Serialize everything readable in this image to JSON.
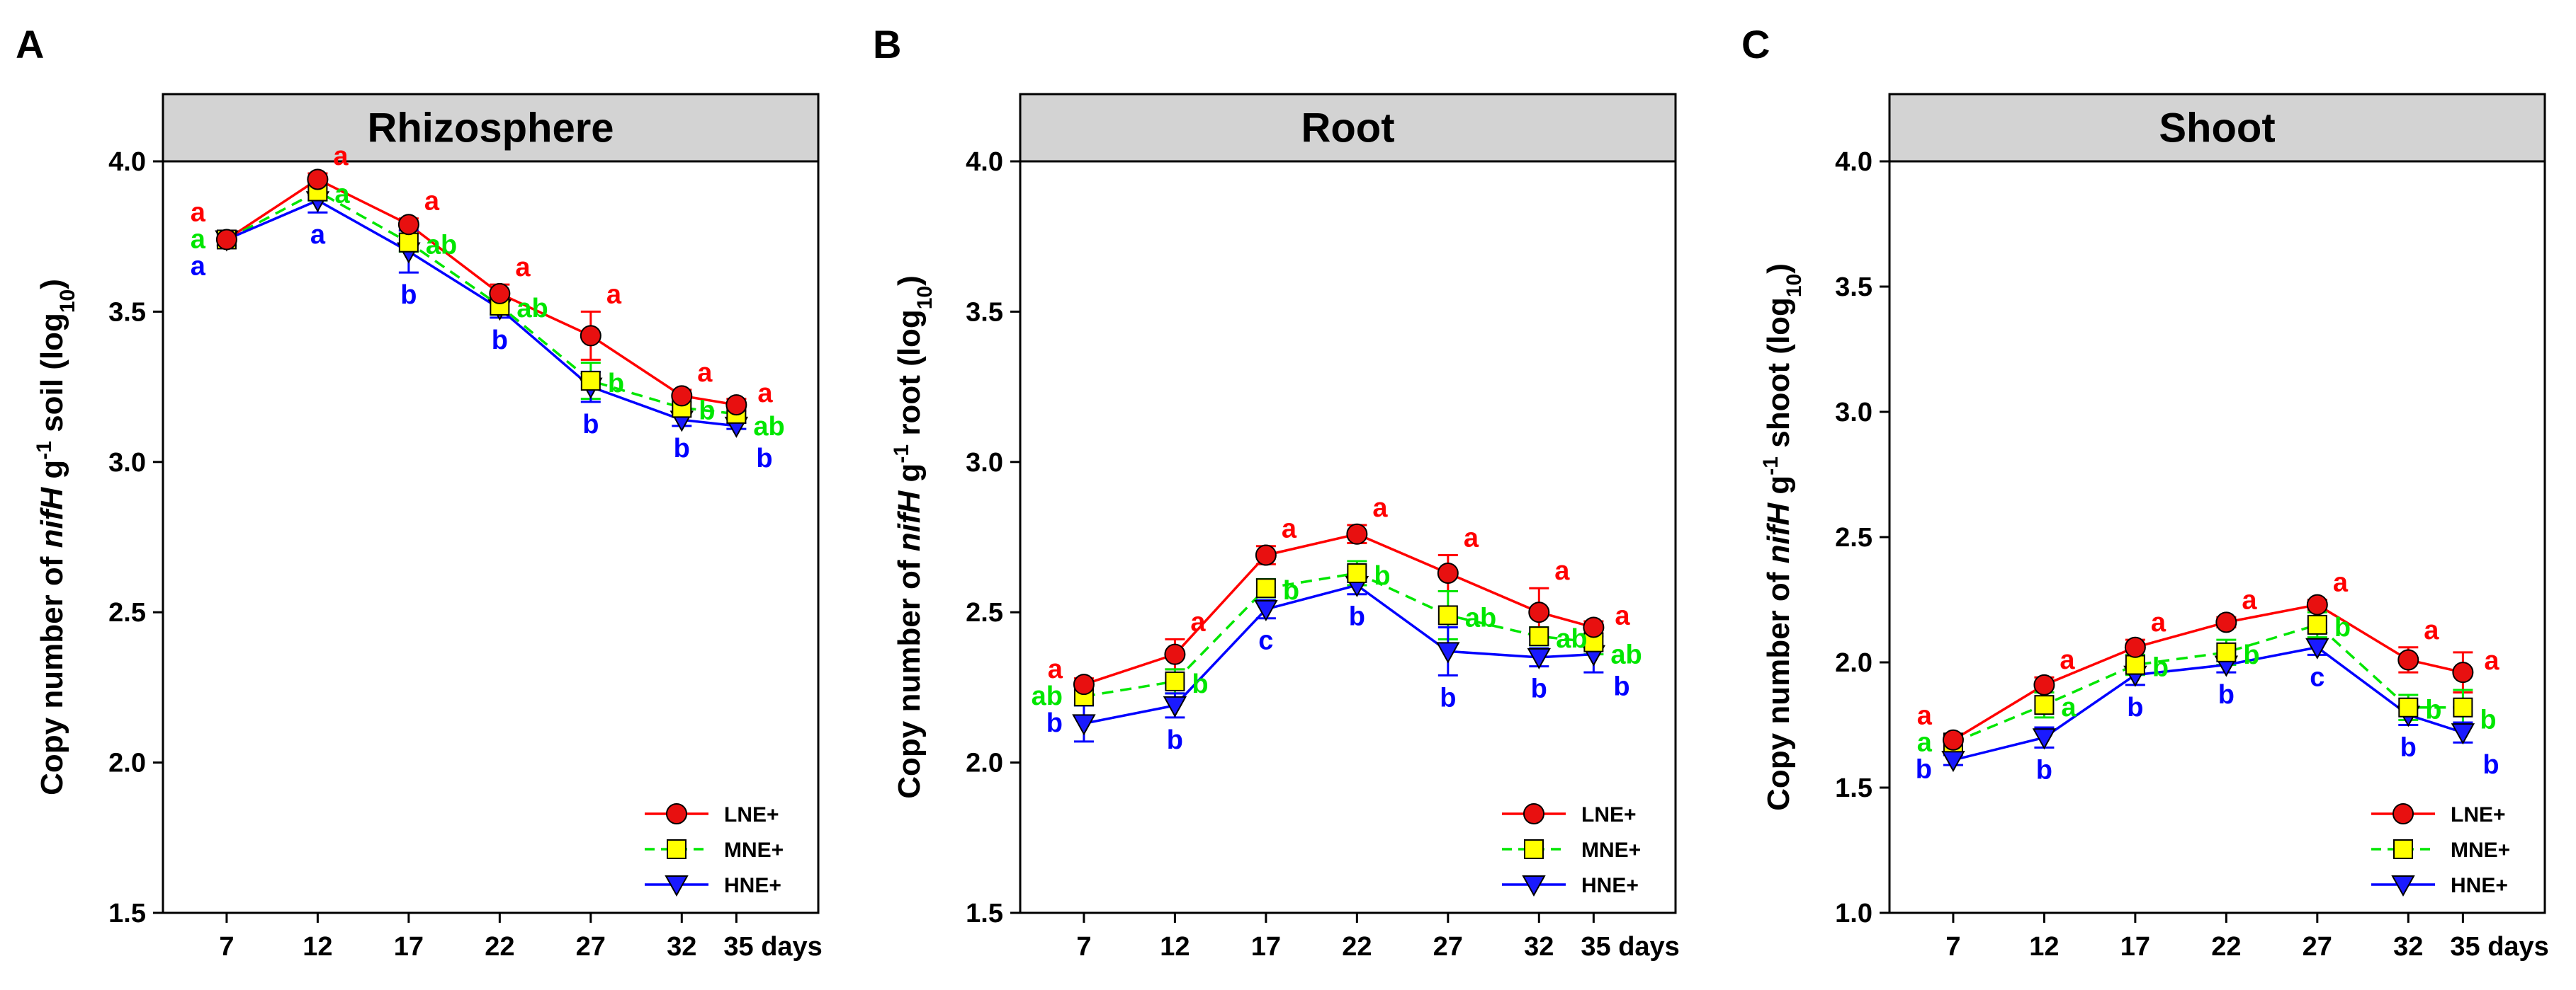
{
  "colors": {
    "LNE+": "#ff0000",
    "MNE+": "#00e600",
    "HNE+": "#0000ff",
    "marker_LNE": "#e81010",
    "marker_MNE": "#ffff00",
    "marker_HNE": "#1a1aff",
    "header_bg": "#d3d3d3"
  },
  "chart_data": [
    {
      "type": "line",
      "panel": "A",
      "title": "Rhizosphere",
      "ylabel_prefix": "Copy number of ",
      "ylabel_gene": "nifH",
      "ylabel_mid": " g",
      "ylabel_sup": "-1",
      "ylabel_unit": " soil (log",
      "ylabel_sub": "10",
      "ylabel_end": ")",
      "ylim": [
        1.5,
        4.0
      ],
      "yticks": [
        "1.5",
        "2.0",
        "2.5",
        "3.0",
        "3.5",
        "4.0"
      ],
      "xlim": [
        3.5,
        39.5
      ],
      "x": [
        7,
        12,
        17,
        22,
        27,
        32,
        35
      ],
      "xtick_labels": [
        "7",
        "12",
        "17",
        "22",
        "27",
        "32",
        "35 days"
      ],
      "legend_position": "bottom-right",
      "series": [
        {
          "name": "LNE+",
          "values": [
            3.74,
            3.94,
            3.79,
            3.56,
            3.42,
            3.22,
            3.19
          ],
          "errors": [
            0.02,
            0.02,
            0.02,
            0.03,
            0.08,
            0.02,
            0.02
          ],
          "letters": [
            "a",
            "a",
            "a",
            "a",
            "a",
            "a",
            "a"
          ]
        },
        {
          "name": "MNE+",
          "values": [
            3.74,
            3.9,
            3.73,
            3.52,
            3.27,
            3.18,
            3.16
          ],
          "errors": [
            0.02,
            0.03,
            0.03,
            0.03,
            0.06,
            0.02,
            0.02
          ],
          "letters": [
            "a",
            "a",
            "ab",
            "ab",
            "b",
            "b",
            "ab"
          ]
        },
        {
          "name": "HNE+",
          "values": [
            3.74,
            3.87,
            3.7,
            3.51,
            3.25,
            3.14,
            3.12
          ],
          "errors": [
            0.02,
            0.04,
            0.07,
            0.03,
            0.05,
            0.02,
            0.01
          ],
          "letters": [
            "a",
            "a",
            "b",
            "b",
            "b",
            "b",
            "b"
          ]
        }
      ]
    },
    {
      "type": "line",
      "panel": "B",
      "title": "Root",
      "ylabel_prefix": "Copy number of ",
      "ylabel_gene": "nifH",
      "ylabel_mid": " g",
      "ylabel_sup": "-1",
      "ylabel_unit": " root (log",
      "ylabel_sub": "10",
      "ylabel_end": ")",
      "ylim": [
        1.5,
        4.0
      ],
      "yticks": [
        "1.5",
        "2.0",
        "2.5",
        "3.0",
        "3.5",
        "4.0"
      ],
      "xlim": [
        3.5,
        39.5
      ],
      "x": [
        7,
        12,
        17,
        22,
        27,
        32,
        35
      ],
      "xtick_labels": [
        "7",
        "12",
        "17",
        "22",
        "27",
        "32",
        "35 days"
      ],
      "legend_position": "bottom-right",
      "series": [
        {
          "name": "LNE+",
          "values": [
            2.26,
            2.36,
            2.69,
            2.76,
            2.63,
            2.5,
            2.45
          ],
          "errors": [
            0.02,
            0.05,
            0.03,
            0.03,
            0.06,
            0.08,
            0.02
          ],
          "letters": [
            "a",
            "a",
            "a",
            "a",
            "a",
            "a",
            "a"
          ]
        },
        {
          "name": "MNE+",
          "values": [
            2.22,
            2.27,
            2.58,
            2.63,
            2.49,
            2.42,
            2.4
          ],
          "errors": [
            0.03,
            0.04,
            0.03,
            0.04,
            0.08,
            0.03,
            0.04
          ],
          "letters": [
            "ab",
            "b",
            "b",
            "b",
            "ab",
            "ab",
            "ab"
          ]
        },
        {
          "name": "HNE+",
          "values": [
            2.13,
            2.19,
            2.51,
            2.59,
            2.37,
            2.35,
            2.36
          ],
          "errors": [
            0.06,
            0.04,
            0.03,
            0.03,
            0.08,
            0.03,
            0.06
          ],
          "letters": [
            "b",
            "b",
            "c",
            "b",
            "b",
            "b",
            "b"
          ]
        }
      ]
    },
    {
      "type": "line",
      "panel": "C",
      "title": "Shoot",
      "ylabel_prefix": "Copy number of ",
      "ylabel_gene": "nifH",
      "ylabel_mid": " g",
      "ylabel_sup": "-1",
      "ylabel_unit": " shoot (log",
      "ylabel_sub": "10",
      "ylabel_end": ")",
      "ylim": [
        1.0,
        4.0
      ],
      "yticks": [
        "1.0",
        "1.5",
        "2.0",
        "2.5",
        "3.0",
        "3.5",
        "4.0"
      ],
      "xlim": [
        3.5,
        39.5
      ],
      "x": [
        7,
        12,
        17,
        22,
        27,
        32,
        35
      ],
      "xtick_labels": [
        "7",
        "12",
        "17",
        "22",
        "27",
        "32",
        "35 days"
      ],
      "legend_position": "bottom-right",
      "series": [
        {
          "name": "LNE+",
          "values": [
            1.69,
            1.91,
            2.06,
            2.16,
            2.23,
            2.01,
            1.96
          ],
          "errors": [
            0.02,
            0.03,
            0.03,
            0.02,
            0.02,
            0.05,
            0.08
          ],
          "letters": [
            "a",
            "a",
            "a",
            "a",
            "a",
            "a",
            "a"
          ]
        },
        {
          "name": "MNE+",
          "values": [
            1.68,
            1.83,
            1.99,
            2.04,
            2.15,
            1.82,
            1.82
          ],
          "errors": [
            0.02,
            0.05,
            0.04,
            0.05,
            0.05,
            0.05,
            0.07
          ],
          "letters": [
            "a",
            "a",
            "b",
            "b",
            "b",
            "b",
            "b"
          ]
        },
        {
          "name": "HNE+",
          "values": [
            1.61,
            1.7,
            1.95,
            1.99,
            2.06,
            1.79,
            1.72
          ],
          "errors": [
            0.02,
            0.04,
            0.04,
            0.03,
            0.03,
            0.04,
            0.04
          ],
          "letters": [
            "b",
            "b",
            "b",
            "b",
            "c",
            "b",
            "b"
          ]
        }
      ]
    }
  ]
}
